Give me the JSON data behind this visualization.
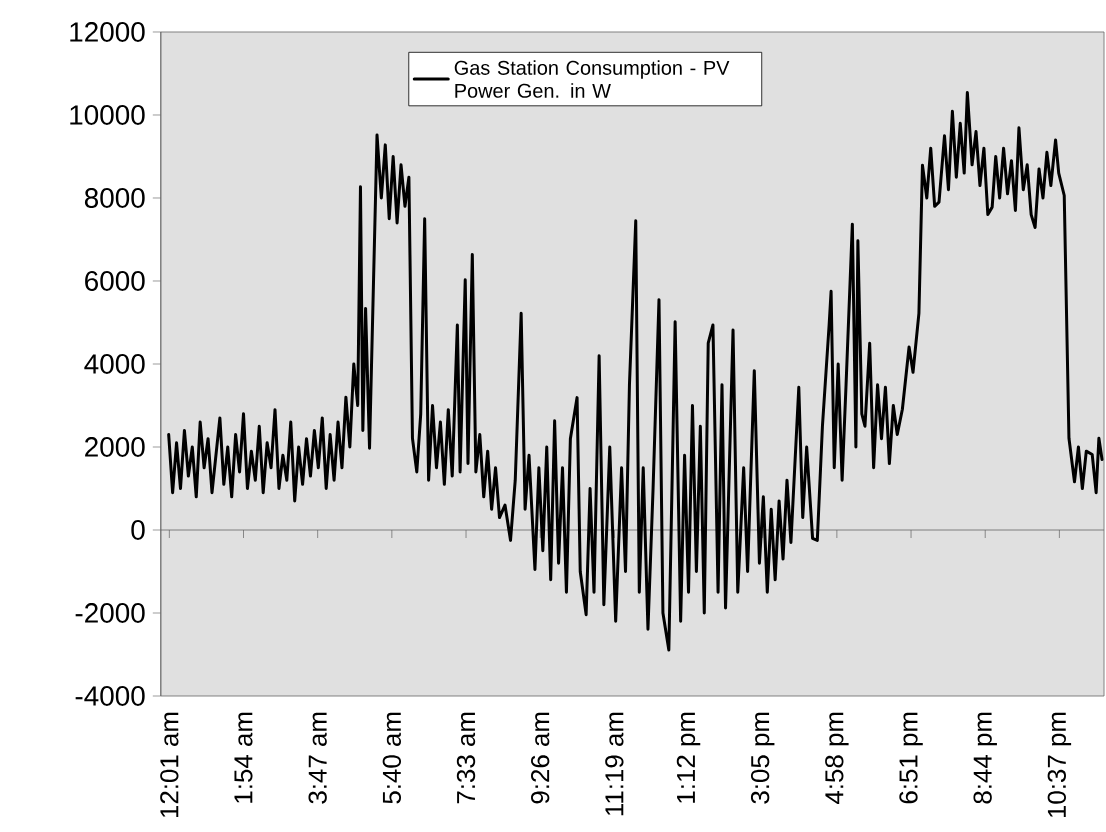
{
  "chart_data": {
    "type": "line",
    "x": [
      0.0,
      0.1,
      0.2,
      0.3,
      0.4,
      0.5,
      0.6,
      0.7,
      0.8,
      0.9,
      1.0,
      1.1,
      1.2,
      1.3,
      1.4,
      1.5,
      1.6,
      1.7,
      1.8,
      1.9,
      2.0,
      2.1,
      2.2,
      2.3,
      2.4,
      2.5,
      2.6,
      2.7,
      2.8,
      2.9,
      3.0,
      3.1,
      3.2,
      3.3,
      3.4,
      3.5,
      3.6,
      3.7,
      3.8,
      3.9,
      4.0,
      4.1,
      4.2,
      4.3,
      4.4,
      4.5,
      4.6,
      4.7,
      4.8,
      4.87,
      4.93,
      5.0,
      5.1,
      5.29,
      5.4,
      5.5,
      5.6,
      5.7,
      5.8,
      5.9,
      6.0,
      6.1,
      6.19,
      6.3,
      6.4,
      6.5,
      6.6,
      6.7,
      6.8,
      6.9,
      7.0,
      7.1,
      7.2,
      7.33,
      7.4,
      7.53,
      7.6,
      7.71,
      7.8,
      7.9,
      8.0,
      8.1,
      8.2,
      8.3,
      8.4,
      8.54,
      8.68,
      8.8,
      8.95,
      9.05,
      9.15,
      9.3,
      9.4,
      9.5,
      9.6,
      9.7,
      9.8,
      9.9,
      10.0,
      10.1,
      10.2,
      10.37,
      10.45,
      10.6,
      10.7,
      10.8,
      10.93,
      11.05,
      11.2,
      11.35,
      11.5,
      11.6,
      11.7,
      11.86,
      11.95,
      12.05,
      12.17,
      12.3,
      12.45,
      12.55,
      12.7,
      12.8,
      12.86,
      13.0,
      13.1,
      13.2,
      13.3,
      13.4,
      13.5,
      13.6,
      13.7,
      13.82,
      13.95,
      14.05,
      14.14,
      14.33,
      14.45,
      14.6,
      14.7,
      14.87,
      15.0,
      15.1,
      15.2,
      15.3,
      15.4,
      15.5,
      15.6,
      15.7,
      15.8,
      16.0,
      16.1,
      16.2,
      16.35,
      16.47,
      16.6,
      16.77,
      16.82,
      16.9,
      17.0,
      17.1,
      17.2,
      17.36,
      17.45,
      17.5,
      17.6,
      17.68,
      17.8,
      17.9,
      18.0,
      18.1,
      18.2,
      18.3,
      18.4,
      18.5,
      18.63,
      18.8,
      18.9,
      19.05,
      19.14,
      19.25,
      19.35,
      19.45,
      19.56,
      19.7,
      19.8,
      19.9,
      20.0,
      20.1,
      20.2,
      20.28,
      20.4,
      20.5,
      20.6,
      20.7,
      20.8,
      20.91,
      21.0,
      21.1,
      21.2,
      21.3,
      21.4,
      21.5,
      21.59,
      21.7,
      21.8,
      21.9,
      22.0,
      22.1,
      22.2,
      22.3,
      22.4,
      22.52,
      22.6,
      22.74,
      22.86,
      23.0,
      23.1,
      23.2,
      23.3,
      23.45,
      23.55,
      23.62,
      23.7
    ],
    "series": [
      {
        "name": "Gas Station Consumption - PV Power Gen. in W",
        "color": "#000000",
        "values": [
          2300,
          900,
          2100,
          1000,
          2400,
          1300,
          2000,
          800,
          2600,
          1500,
          2200,
          900,
          1800,
          2700,
          1100,
          2000,
          800,
          2300,
          1400,
          2800,
          1000,
          1900,
          1200,
          2500,
          900,
          2100,
          1500,
          2900,
          1000,
          1800,
          1200,
          2600,
          700,
          2000,
          1100,
          2200,
          1300,
          2400,
          1500,
          2700,
          1000,
          2300,
          1200,
          2600,
          1500,
          3200,
          2000,
          4000,
          3000,
          8270,
          2400,
          5340,
          1970,
          9520,
          8000,
          9280,
          7500,
          9000,
          7400,
          8800,
          7800,
          8500,
          2210,
          1400,
          2800,
          7500,
          1200,
          3000,
          1500,
          2600,
          1100,
          2900,
          1300,
          4940,
          1400,
          6030,
          1600,
          6640,
          1400,
          2300,
          800,
          1900,
          500,
          1500,
          300,
          600,
          -250,
          1200,
          5220,
          500,
          1800,
          -950,
          1500,
          -500,
          2000,
          -1200,
          2630,
          -800,
          1500,
          -1500,
          2200,
          3190,
          -1000,
          -2040,
          1000,
          -1500,
          4200,
          -1800,
          2000,
          -2200,
          1500,
          -1000,
          3500,
          7450,
          -1500,
          1500,
          -2390,
          1000,
          5550,
          -2000,
          -2890,
          2000,
          5020,
          -2200,
          1800,
          -1500,
          3000,
          -1000,
          2500,
          -2000,
          4500,
          4940,
          -1500,
          3500,
          -1880,
          4820,
          -1500,
          1500,
          -1000,
          3840,
          -800,
          800,
          -1500,
          500,
          -1200,
          700,
          -700,
          1200,
          -300,
          3440,
          300,
          2000,
          -200,
          -250,
          2500,
          4940,
          5750,
          1500,
          4000,
          1200,
          3500,
          7370,
          2000,
          6970,
          2800,
          2500,
          4500,
          1500,
          3500,
          2200,
          3440,
          1600,
          3000,
          2300,
          2910,
          4410,
          3800,
          5220,
          8790,
          8000,
          9200,
          7800,
          7900,
          9500,
          8200,
          10090,
          8500,
          9800,
          8600,
          10540,
          8800,
          9600,
          8300,
          9200,
          7600,
          7780,
          9000,
          8000,
          9200,
          8100,
          8900,
          7700,
          9690,
          8200,
          8800,
          7600,
          7290,
          8700,
          8000,
          9100,
          8300,
          9400,
          8600,
          8060,
          2210,
          1160,
          2000,
          1000,
          1900,
          1820,
          900,
          2210,
          1700
        ]
      }
    ],
    "xlim": [
      -0.2,
      23.75
    ],
    "ylim": [
      -4000,
      12000
    ],
    "xticks": [
      {
        "value": 0.0167,
        "label": "12:01 am"
      },
      {
        "value": 1.9,
        "label": "1:54 am"
      },
      {
        "value": 3.7833,
        "label": "3:47 am"
      },
      {
        "value": 5.6667,
        "label": "5:40 am"
      },
      {
        "value": 7.55,
        "label": "7:33 am"
      },
      {
        "value": 9.4333,
        "label": "9:26 am"
      },
      {
        "value": 11.3167,
        "label": "11:19 am"
      },
      {
        "value": 13.2,
        "label": "1:12 pm"
      },
      {
        "value": 15.0833,
        "label": "3:05 pm"
      },
      {
        "value": 16.9667,
        "label": "4:58 pm"
      },
      {
        "value": 18.85,
        "label": "6:51 pm"
      },
      {
        "value": 20.7333,
        "label": "8:44 pm"
      },
      {
        "value": 22.6167,
        "label": "10:37 pm"
      }
    ],
    "yticks": [
      -4000,
      -2000,
      0,
      2000,
      4000,
      6000,
      8000,
      10000,
      12000
    ],
    "legend": "top"
  }
}
